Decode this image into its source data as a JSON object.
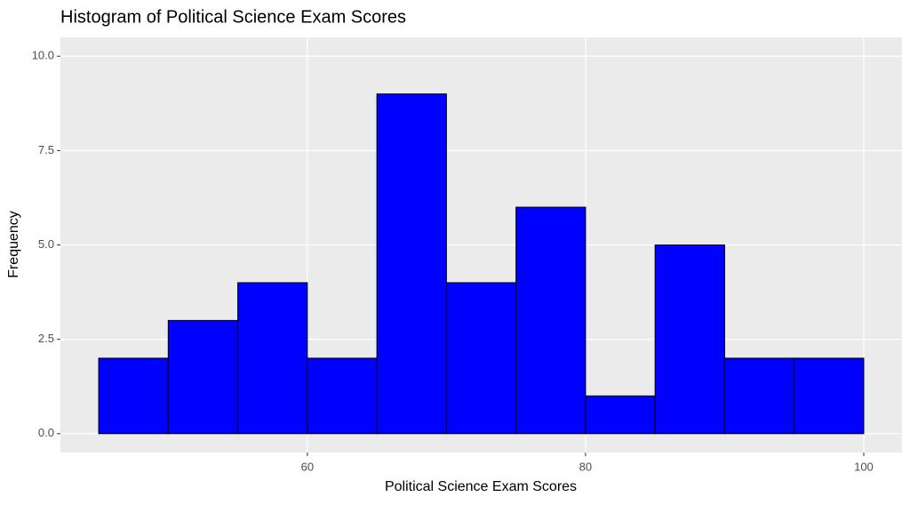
{
  "chart_data": {
    "type": "histogram",
    "title": "Histogram of Political Science Exam Scores",
    "x_label": "Political Science Exam Scores",
    "y_label": "Frequency",
    "bins": [
      45,
      50,
      55,
      60,
      65,
      70,
      75,
      80,
      85,
      90,
      95,
      100
    ],
    "values": [
      2,
      3,
      4,
      2,
      9,
      4,
      6,
      1,
      5,
      2,
      2
    ],
    "color": "#0000ff",
    "edge_color": "#000000",
    "xlim": [
      42.25,
      102.75
    ],
    "xticks": [
      60,
      80,
      100
    ],
    "ylim": [
      -0.5,
      10.5
    ],
    "yticks": [
      {
        "value": 0,
        "label": "0.0"
      },
      2.5,
      {
        "value": 5,
        "label": "5.0"
      },
      7.5,
      {
        "value": 10,
        "label": "10.0"
      }
    ],
    "grid": true
  }
}
